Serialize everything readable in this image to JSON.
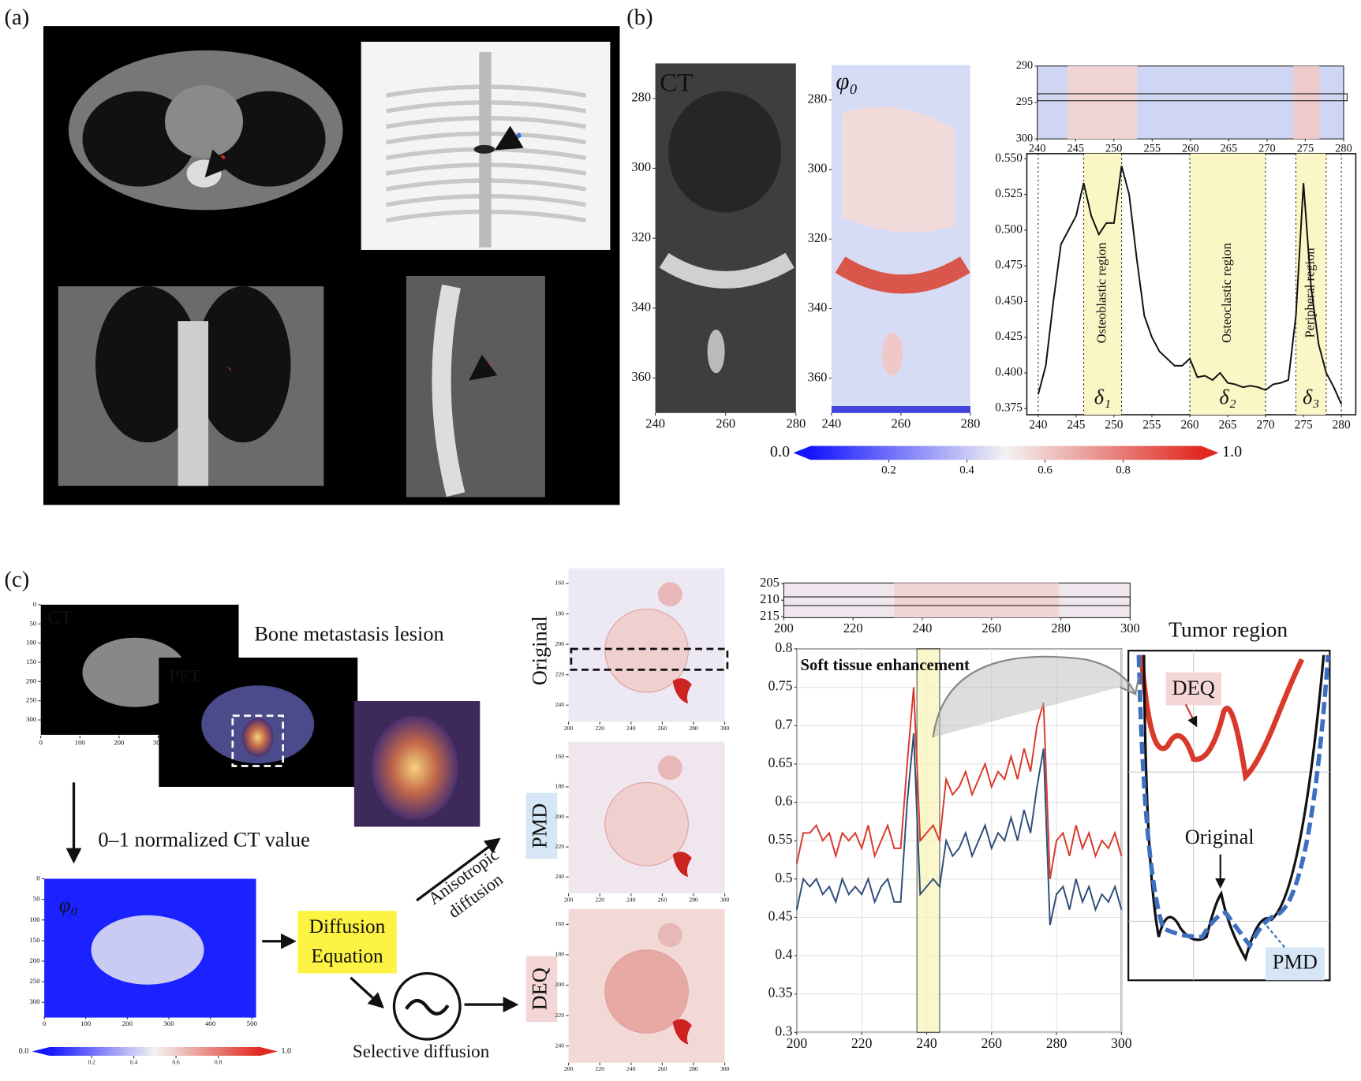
{
  "figure": {
    "panel_labels": [
      "(a)",
      "(b)",
      "(c)"
    ],
    "lesion_caption": "Bone metastasis lesion",
    "normalized_caption": "0–1 normalized CT value",
    "diffusion_box": [
      "Diffusion",
      "Equation"
    ],
    "anisotropic": [
      "Anisotropic",
      "diffusion"
    ],
    "selective": "Selective diffusion",
    "inset_title": "Tumor region",
    "inset_labels": [
      "DEQ",
      "Original",
      "PMD"
    ]
  },
  "chart_data": [
    {
      "type": "image",
      "title": "CT",
      "xlim": [
        240,
        280
      ],
      "ylim": [
        370,
        270
      ],
      "xticks": [
        240,
        260,
        280
      ],
      "yticks": [
        280,
        300,
        320,
        340,
        360
      ]
    },
    {
      "type": "image",
      "title": "φ₀",
      "xlim": [
        240,
        280
      ],
      "ylim": [
        370,
        270
      ],
      "xticks": [
        240,
        260,
        280
      ],
      "yticks": [
        280,
        300,
        320,
        340,
        360
      ]
    },
    {
      "type": "heatmap",
      "xlim": [
        240,
        280
      ],
      "ylim": [
        300,
        290
      ],
      "xticks": [
        240,
        245,
        250,
        255,
        260,
        265,
        270,
        275,
        280
      ],
      "yticks": [
        290,
        295,
        300
      ]
    },
    {
      "type": "line",
      "x": [
        240,
        241,
        242,
        243,
        244,
        245,
        246,
        247,
        248,
        249,
        250,
        251,
        252,
        253,
        254,
        255,
        256,
        257,
        258,
        259,
        260,
        261,
        262,
        263,
        264,
        265,
        266,
        267,
        268,
        269,
        270,
        271,
        272,
        273,
        274,
        275,
        276,
        277,
        278,
        279,
        280
      ],
      "series": [
        {
          "color": "#111111",
          "values": [
            0.385,
            0.405,
            0.45,
            0.49,
            0.5,
            0.51,
            0.533,
            0.51,
            0.497,
            0.505,
            0.505,
            0.545,
            0.525,
            0.48,
            0.44,
            0.425,
            0.415,
            0.41,
            0.405,
            0.405,
            0.41,
            0.397,
            0.398,
            0.395,
            0.4,
            0.393,
            0.392,
            0.39,
            0.391,
            0.39,
            0.388,
            0.392,
            0.393,
            0.395,
            0.44,
            0.533,
            0.46,
            0.42,
            0.4,
            0.39,
            0.378
          ]
        }
      ],
      "xlim": [
        238.5,
        281.9
      ],
      "ylim": [
        0.3707,
        0.5536
      ],
      "xticks": [
        240,
        245,
        250,
        255,
        260,
        265,
        270,
        275,
        280
      ],
      "yticks": [
        0.375,
        {
          "value": 0.4,
          "label": "0.400"
        },
        0.425,
        {
          "value": 0.45,
          "label": "0.450"
        },
        0.475,
        {
          "value": 0.5,
          "label": "0.500"
        },
        0.525,
        {
          "value": 0.55,
          "label": "0.550"
        }
      ],
      "dotted_lines": [
        240,
        246,
        251,
        260,
        270,
        274,
        278,
        280
      ],
      "regions": [
        {
          "x": [
            246,
            251
          ],
          "label": "Osteoblastic region",
          "symbol": "δ₁"
        },
        {
          "x": [
            260,
            270
          ],
          "label": "Osteoclastic region",
          "symbol": "δ₂"
        },
        {
          "x": [
            274,
            278
          ],
          "label": "Peripheral region",
          "symbol": "δ₃"
        }
      ]
    },
    {
      "type": "colorbar",
      "xlim": [
        0,
        1
      ],
      "xticks": [
        {
          "value": 0,
          "label": "0.0"
        },
        0.2,
        0.4,
        0.6,
        0.8,
        {
          "value": 1,
          "label": "1.0"
        }
      ]
    },
    {
      "type": "image",
      "title": "CT",
      "xlim": [
        0,
        506
      ],
      "ylim": [
        341,
        0
      ],
      "xticks": [
        0,
        100,
        200,
        300
      ],
      "yticks": [
        0,
        50,
        100,
        150,
        200,
        250,
        300
      ]
    },
    {
      "type": "image",
      "title": "PET"
    },
    {
      "type": "image",
      "title": "φ₀",
      "xlim": [
        0,
        510
      ],
      "ylim": [
        335,
        0
      ],
      "xticks": [
        0,
        100,
        200,
        300,
        400,
        500
      ],
      "yticks": [
        0,
        50,
        100,
        150,
        200,
        250,
        300
      ]
    },
    {
      "type": "colorbar",
      "xlim": [
        0,
        1
      ],
      "xticks": [
        {
          "value": 0,
          "label": "0.0"
        },
        0.2,
        0.4,
        0.6,
        0.8,
        {
          "value": 1,
          "label": "1.0"
        }
      ]
    },
    {
      "type": "image",
      "title": "Original",
      "xlim": [
        200,
        300
      ],
      "ylim": [
        251,
        150
      ],
      "xticks": [
        200,
        220,
        240,
        260,
        280,
        300
      ],
      "yticks": [
        160,
        180,
        200,
        220,
        240
      ]
    },
    {
      "type": "image",
      "title": "PMD",
      "xlim": [
        200,
        300
      ],
      "ylim": [
        251,
        150
      ],
      "xticks": [
        200,
        220,
        240,
        260,
        280,
        300
      ],
      "yticks": [
        160,
        180,
        200,
        220,
        240
      ]
    },
    {
      "type": "image",
      "title": "DEQ",
      "xlim": [
        200,
        300
      ],
      "ylim": [
        251,
        150
      ],
      "xticks": [
        200,
        220,
        240,
        260,
        280,
        300
      ],
      "yticks": [
        160,
        180,
        200,
        220,
        240
      ]
    },
    {
      "type": "heatmap",
      "xlim": [
        200,
        300
      ],
      "ylim": [
        215.3,
        204.8
      ],
      "xticks": [
        200,
        220,
        240,
        260,
        280,
        300
      ],
      "yticks": [
        205,
        210,
        215
      ]
    },
    {
      "type": "line",
      "x": [
        200,
        202,
        204,
        206,
        208,
        210,
        212,
        214,
        216,
        218,
        220,
        222,
        224,
        226,
        228,
        230,
        232,
        234,
        236,
        238,
        240,
        242,
        244,
        246,
        248,
        250,
        252,
        254,
        256,
        258,
        260,
        262,
        264,
        266,
        268,
        270,
        272,
        274,
        276,
        278,
        280,
        282,
        284,
        286,
        288,
        290,
        292,
        294,
        296,
        298,
        300
      ],
      "series": [
        {
          "color": "#d9392b",
          "values": [
            0.52,
            0.56,
            0.56,
            0.57,
            0.55,
            0.56,
            0.53,
            0.56,
            0.55,
            0.56,
            0.54,
            0.57,
            0.53,
            0.55,
            0.57,
            0.54,
            0.54,
            0.65,
            0.75,
            0.55,
            0.56,
            0.57,
            0.55,
            0.63,
            0.61,
            0.62,
            0.64,
            0.61,
            0.63,
            0.65,
            0.62,
            0.64,
            0.63,
            0.66,
            0.63,
            0.67,
            0.64,
            0.7,
            0.73,
            0.5,
            0.55,
            0.56,
            0.53,
            0.57,
            0.54,
            0.56,
            0.53,
            0.55,
            0.54,
            0.56,
            0.53
          ]
        },
        {
          "color": "#2f4f7a",
          "values": [
            0.46,
            0.5,
            0.49,
            0.5,
            0.48,
            0.49,
            0.47,
            0.5,
            0.48,
            0.49,
            0.48,
            0.5,
            0.47,
            0.49,
            0.5,
            0.47,
            0.47,
            0.6,
            0.69,
            0.48,
            0.49,
            0.5,
            0.49,
            0.55,
            0.53,
            0.54,
            0.56,
            0.53,
            0.55,
            0.57,
            0.54,
            0.56,
            0.55,
            0.58,
            0.55,
            0.59,
            0.56,
            0.62,
            0.67,
            0.44,
            0.48,
            0.49,
            0.46,
            0.5,
            0.47,
            0.49,
            0.46,
            0.48,
            0.47,
            0.49,
            0.46
          ]
        }
      ],
      "xlim": [
        200,
        300
      ],
      "ylim": [
        0.3,
        0.8
      ],
      "xticks": [
        200,
        220,
        240,
        260,
        280,
        300
      ],
      "yticks": [
        0.3,
        0.35,
        0.4,
        0.45,
        0.5,
        0.55,
        0.6,
        0.65,
        0.7,
        0.75,
        0.8
      ],
      "grid": true,
      "highlight": [
        237,
        244
      ],
      "annotation": "Soft tissue enhancement"
    }
  ]
}
